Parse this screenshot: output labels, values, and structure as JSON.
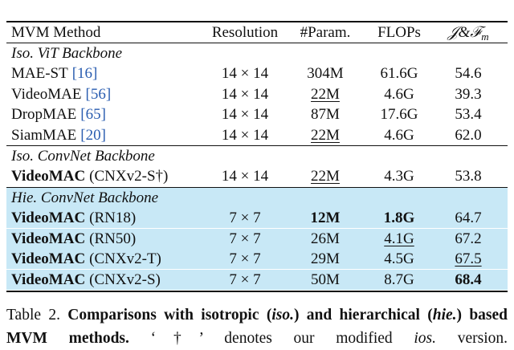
{
  "table": {
    "header": [
      {
        "text": "MVM Method"
      },
      {
        "text": "Resolution"
      },
      {
        "text": "#Param."
      },
      {
        "text": "FLOPs"
      },
      {
        "text": "𝒥&ℱ",
        "sub": "m"
      }
    ],
    "sections": [
      {
        "title": "Iso. ViT Backbone",
        "highlight": false,
        "rows": [
          {
            "name": "MAE-ST",
            "ref": "[16]",
            "cells": [
              {
                "text": "14 × 14"
              },
              {
                "text": "304M"
              },
              {
                "text": "61.6G"
              },
              {
                "text": "54.6"
              }
            ]
          },
          {
            "name": "VideoMAE",
            "ref": "[56]",
            "cells": [
              {
                "text": "14 × 14"
              },
              {
                "text": "22M",
                "style": "underline"
              },
              {
                "text": "4.6G"
              },
              {
                "text": "39.3"
              }
            ]
          },
          {
            "name": "DropMAE",
            "ref": "[65]",
            "cells": [
              {
                "text": "14 × 14"
              },
              {
                "text": "87M"
              },
              {
                "text": "17.6G"
              },
              {
                "text": "53.4"
              }
            ]
          },
          {
            "name": "SiamMAE",
            "ref": "[20]",
            "cells": [
              {
                "text": "14 × 14"
              },
              {
                "text": "22M",
                "style": "underline"
              },
              {
                "text": "4.6G"
              },
              {
                "text": "62.0"
              }
            ]
          }
        ]
      },
      {
        "title": "Iso. ConvNet Backbone",
        "highlight": false,
        "rows": [
          {
            "name": "VideoMAC",
            "variant": "(CNXv2-S†)",
            "cells": [
              {
                "text": "14 × 14"
              },
              {
                "text": "22M",
                "style": "underline"
              },
              {
                "text": "4.3G"
              },
              {
                "text": "53.8"
              }
            ]
          }
        ]
      },
      {
        "title": "Hie. ConvNet Backbone",
        "highlight": true,
        "rows": [
          {
            "name": "VideoMAC",
            "variant": "(RN18)",
            "cells": [
              {
                "text": "7 × 7"
              },
              {
                "text": "12M",
                "style": "bold"
              },
              {
                "text": "1.8G",
                "style": "bold"
              },
              {
                "text": "64.7"
              }
            ]
          },
          {
            "name": "VideoMAC",
            "variant": "(RN50)",
            "cells": [
              {
                "text": "7 × 7"
              },
              {
                "text": "26M"
              },
              {
                "text": "4.1G",
                "style": "underline"
              },
              {
                "text": "67.2"
              }
            ]
          },
          {
            "name": "VideoMAC",
            "variant": "(CNXv2-T)",
            "cells": [
              {
                "text": "7 × 7"
              },
              {
                "text": "29M"
              },
              {
                "text": "4.5G"
              },
              {
                "text": "67.5",
                "style": "underline"
              }
            ]
          },
          {
            "name": "VideoMAC",
            "variant": "(CNXv2-S)",
            "cells": [
              {
                "text": "7 × 7"
              },
              {
                "text": "50M"
              },
              {
                "text": "8.7G"
              },
              {
                "text": "68.4",
                "style": "bold"
              }
            ]
          }
        ]
      }
    ]
  },
  "caption": [
    {
      "text": "Table 2.",
      "style": "normal"
    },
    {
      "text": "Comparisons with isotropic (",
      "style": "bold"
    },
    {
      "text": "iso.",
      "style": "bold-italic"
    },
    {
      "text": ") and hierarchical (",
      "style": "bold"
    },
    {
      "text": "hie.",
      "style": "bold-italic"
    },
    {
      "text": ") based MVM methods.",
      "style": "bold"
    },
    {
      "text": "‘†’ denotes our modified",
      "style": "normal"
    },
    {
      "text": "ios.",
      "style": "italic"
    },
    {
      "text": "version.",
      "style": "normal"
    }
  ]
}
